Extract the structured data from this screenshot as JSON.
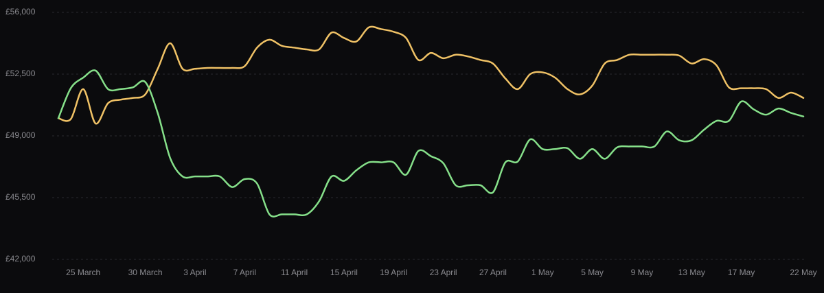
{
  "chart_data": {
    "type": "line",
    "categories": [
      null,
      null,
      "25 March",
      null,
      null,
      null,
      null,
      "30 March",
      null,
      null,
      null,
      "3 April",
      null,
      null,
      null,
      "7 April",
      null,
      null,
      null,
      "11 April",
      null,
      null,
      null,
      "15 April",
      null,
      null,
      null,
      "19 April",
      null,
      null,
      null,
      "23 April",
      null,
      null,
      null,
      "27 April",
      null,
      null,
      null,
      "1 May",
      null,
      null,
      null,
      "5 May",
      null,
      null,
      null,
      "9 May",
      null,
      null,
      null,
      "13 May",
      null,
      null,
      null,
      "17 May",
      null,
      null,
      null,
      null,
      "22 May"
    ],
    "series": [
      {
        "color": "#f0c266",
        "values": [
          50000,
          49950,
          51650,
          49700,
          50850,
          51050,
          51150,
          51350,
          52800,
          54250,
          52800,
          52800,
          52850,
          52850,
          52850,
          52950,
          54000,
          54450,
          54100,
          54000,
          53900,
          53900,
          54850,
          54550,
          54350,
          55150,
          55050,
          54900,
          54550,
          53300,
          53700,
          53400,
          53600,
          53500,
          53300,
          53100,
          52250,
          51650,
          52500,
          52600,
          52300,
          51650,
          51350,
          51850,
          53100,
          53300,
          53600,
          53600,
          53600,
          53600,
          53550,
          53100,
          53350,
          53000,
          51750,
          51700,
          51700,
          51650,
          51150,
          51450,
          51150
        ]
      },
      {
        "color": "#86e08a",
        "values": [
          50000,
          51700,
          52300,
          52700,
          51650,
          51650,
          51750,
          52050,
          50300,
          47750,
          46700,
          46700,
          46700,
          46700,
          46100,
          46550,
          46300,
          44550,
          44550,
          44550,
          44550,
          45300,
          46700,
          46450,
          47050,
          47500,
          47500,
          47500,
          46800,
          48150,
          47850,
          47450,
          46200,
          46200,
          46200,
          45800,
          47500,
          47550,
          48800,
          48250,
          48250,
          48300,
          47700,
          48250,
          47700,
          48350,
          48400,
          48400,
          48400,
          49250,
          48750,
          48750,
          49350,
          49850,
          49850,
          50950,
          50500,
          50200,
          50550,
          50300,
          50100
        ]
      }
    ],
    "ylim": [
      42000,
      56000
    ],
    "yticks": [
      {
        "value": 42000,
        "label": "£42,000"
      },
      {
        "value": 45500,
        "label": "£45,500"
      },
      {
        "value": 49000,
        "label": "£49,000"
      },
      {
        "value": 52500,
        "label": "£52,500"
      },
      {
        "value": 56000,
        "label": "£56,000"
      }
    ],
    "grid": true
  }
}
